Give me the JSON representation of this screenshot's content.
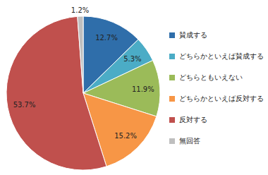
{
  "chart_data": {
    "type": "pie",
    "categories": [
      "賛成する",
      "どちらかといえば賛成する",
      "どちらともいえない",
      "どちらかといえば反対する",
      "反対する",
      "無回答"
    ],
    "values": [
      12.7,
      5.3,
      11.9,
      15.2,
      53.7,
      1.2
    ],
    "value_labels": [
      "12.7%",
      "5.3%",
      "11.9%",
      "15.2%",
      "53.7%",
      "1.2%"
    ],
    "colors": [
      "#2f6eaa",
      "#4bacc6",
      "#9bbb59",
      "#f79646",
      "#c0504d",
      "#bfbfbf"
    ],
    "data_labels": true,
    "legend": "right"
  }
}
